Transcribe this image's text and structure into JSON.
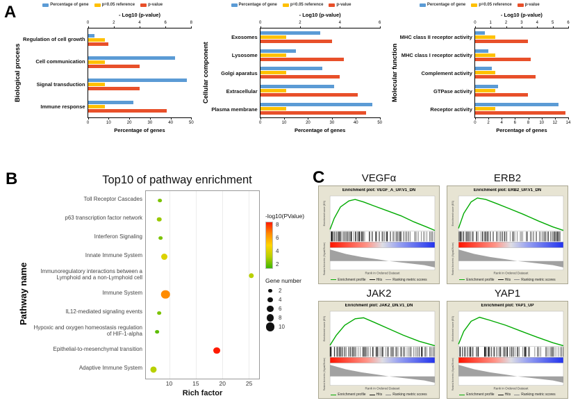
{
  "panel_labels": {
    "a": "A",
    "b": "B",
    "c": "C"
  },
  "go_labels": {
    "legend": [
      "Percentage of gene",
      "p=0.05 reference",
      "p-value"
    ],
    "colors": {
      "percent": "#5b9bd5",
      "reference": "#ffc000",
      "pvalue": "#e8502a"
    }
  },
  "gsea_labels": {
    "legend": [
      "Enrichment profile",
      "Hits",
      "Ranking metric scores"
    ],
    "legend_colors": [
      "#00aa00",
      "#111111",
      "#888888"
    ],
    "xlabel": "Rank in Ordered Dataset",
    "ylabel_es": "Enrichment score (ES)",
    "ylabel_metric": "Ranked list metric (Signal2Noise)"
  },
  "chart_data": [
    {
      "id": "go_bp",
      "type": "bar",
      "panel": "A",
      "group_label": "Biological process",
      "top_axis": {
        "label": "- Log10 (p-value)",
        "max": 8,
        "ticks": [
          0,
          2,
          4,
          6,
          8
        ]
      },
      "bottom_axis": {
        "label": "Percentage of genes",
        "max": 50,
        "ticks": [
          0,
          10,
          20,
          30,
          40,
          50
        ]
      },
      "categories": [
        "Regulation of cell growth",
        "Cell communication",
        "Signal transduction",
        "Immune response"
      ],
      "series": [
        {
          "name": "Percentage of gene",
          "axis": "bottom",
          "color": "#5b9bd5",
          "values": [
            3,
            42,
            48,
            22
          ]
        },
        {
          "name": "p=0.05 reference",
          "axis": "top",
          "color": "#ffc000",
          "values": [
            1.3,
            1.3,
            1.3,
            1.3
          ]
        },
        {
          "name": "p-value",
          "axis": "top",
          "color": "#e8502a",
          "values": [
            1.6,
            4.0,
            4.0,
            6.1
          ]
        }
      ]
    },
    {
      "id": "go_cc",
      "type": "bar",
      "panel": "A",
      "group_label": "Cellular component",
      "top_axis": {
        "label": "- Log10 (p-value)",
        "max": 6,
        "ticks": [
          0,
          2,
          4,
          6
        ]
      },
      "bottom_axis": {
        "label": "Percentage of genes",
        "max": 50,
        "ticks": [
          0,
          10,
          20,
          30,
          40,
          50
        ]
      },
      "categories": [
        "Exosomes",
        "Lysosome",
        "Golgi aparatus",
        "Extracellular",
        "Plasma membrane"
      ],
      "series": [
        {
          "name": "Percentage of gene",
          "axis": "bottom",
          "color": "#5b9bd5",
          "values": [
            25,
            15,
            26,
            31,
            47
          ]
        },
        {
          "name": "p=0.05 reference",
          "axis": "top",
          "color": "#ffc000",
          "values": [
            1.3,
            1.3,
            1.3,
            1.3,
            1.3
          ]
        },
        {
          "name": "p-value",
          "axis": "top",
          "color": "#e8502a",
          "values": [
            3.6,
            4.2,
            4.0,
            4.9,
            5.3
          ]
        }
      ]
    },
    {
      "id": "go_mf",
      "type": "bar",
      "panel": "A",
      "group_label": "Molecular function",
      "top_axis": {
        "label": "- Log10 (p-value)",
        "max": 6,
        "ticks": [
          0,
          1,
          2,
          3,
          4,
          5,
          6
        ]
      },
      "bottom_axis": {
        "label": "Percentage of genes",
        "max": 14,
        "ticks": [
          0,
          2,
          4,
          6,
          8,
          10,
          12,
          14
        ]
      },
      "categories": [
        "MHC class II receptor activity",
        "MHC class I receptor activity",
        "Complement activity",
        "GTPase activity",
        "Receptor activity"
      ],
      "series": [
        {
          "name": "Percentage of gene",
          "axis": "bottom",
          "color": "#5b9bd5",
          "values": [
            1.5,
            2,
            2.5,
            3.5,
            12.5
          ]
        },
        {
          "name": "p=0.05 reference",
          "axis": "top",
          "color": "#ffc000",
          "values": [
            1.3,
            1.3,
            1.3,
            1.3,
            1.3
          ]
        },
        {
          "name": "p-value",
          "axis": "top",
          "color": "#e8502a",
          "values": [
            3.4,
            3.6,
            3.9,
            3.4,
            5.8
          ]
        }
      ]
    },
    {
      "id": "pathway_bubble",
      "type": "scatter",
      "panel": "B",
      "title": "Top10 of pathway enrichment",
      "xlabel": "Rich factor",
      "ylabel": "Pathway name",
      "x_range": [
        5.5,
        27
      ],
      "x_ticks": [
        10,
        15,
        20,
        25
      ],
      "color_scale": {
        "title": "-log10(PValue)",
        "min": 2,
        "max": 8,
        "ticks": [
          8,
          6,
          4,
          2
        ]
      },
      "size_legend": {
        "title": "Gene number",
        "values": [
          2,
          4,
          6,
          8,
          10
        ]
      },
      "points": [
        {
          "pathway": "Toll Receptor Cascades",
          "rich_factor": 8.2,
          "log10_pvalue": 3.0,
          "gene_number": 2
        },
        {
          "pathway": "p63 transcription factor network",
          "rich_factor": 8.0,
          "log10_pvalue": 3.5,
          "gene_number": 3
        },
        {
          "pathway": "Interferon Signaling",
          "rich_factor": 8.3,
          "log10_pvalue": 3.0,
          "gene_number": 2
        },
        {
          "pathway": "Innate Immune System",
          "rich_factor": 9.0,
          "log10_pvalue": 4.5,
          "gene_number": 7
        },
        {
          "pathway": "Immunoregulatory interactions between a Lymphoid and a non-Lymphoid cell",
          "rich_factor": 25.5,
          "log10_pvalue": 4.0,
          "gene_number": 4
        },
        {
          "pathway": "Immune System",
          "rich_factor": 9.2,
          "log10_pvalue": 6.0,
          "gene_number": 10
        },
        {
          "pathway": "IL12-mediated signaling events",
          "rich_factor": 8.0,
          "log10_pvalue": 3.0,
          "gene_number": 2
        },
        {
          "pathway": "Hypoxic and oxygen homeostasis regulation of HIF-1-alpha",
          "rich_factor": 7.6,
          "log10_pvalue": 2.5,
          "gene_number": 2
        },
        {
          "pathway": "Epithelial-to-mesenchymal transition",
          "rich_factor": 19.0,
          "log10_pvalue": 8.0,
          "gene_number": 7
        },
        {
          "pathway": "Adaptive Immune System",
          "rich_factor": 7.0,
          "log10_pvalue": 4.0,
          "gene_number": 6
        }
      ]
    },
    {
      "id": "gsea_vegfa",
      "type": "line",
      "subtype": "gsea",
      "panel": "C",
      "seed": 11,
      "gene": "VEGFα",
      "title": "Enrichment plot: VEGF_A_UP.V1_DN",
      "es_range": [
        0,
        0.7
      ],
      "es_curve": [
        [
          0,
          0.03
        ],
        [
          0.04,
          0.25
        ],
        [
          0.1,
          0.48
        ],
        [
          0.18,
          0.6
        ],
        [
          0.24,
          0.63
        ],
        [
          0.32,
          0.58
        ],
        [
          0.42,
          0.5
        ],
        [
          0.55,
          0.4
        ],
        [
          0.68,
          0.3
        ],
        [
          0.8,
          0.18
        ],
        [
          0.92,
          0.08
        ],
        [
          1,
          0.01
        ]
      ],
      "metric_range": [
        3,
        -2
      ],
      "metric_curve": [
        [
          0,
          2.6
        ],
        [
          0.15,
          1.6
        ],
        [
          0.3,
          0.9
        ],
        [
          0.45,
          0.4
        ],
        [
          0.55,
          0.05
        ],
        [
          0.6,
          -0.1
        ],
        [
          0.75,
          -0.5
        ],
        [
          0.9,
          -0.9
        ],
        [
          1,
          -1.4
        ]
      ]
    },
    {
      "id": "gsea_erb2",
      "type": "line",
      "subtype": "gsea",
      "panel": "C",
      "seed": 29,
      "gene": "ERB2",
      "title": "Enrichment plot: ERB2_UP.V1_DN",
      "es_range": [
        0,
        0.7
      ],
      "es_curve": [
        [
          0,
          0.05
        ],
        [
          0.05,
          0.35
        ],
        [
          0.12,
          0.58
        ],
        [
          0.18,
          0.66
        ],
        [
          0.26,
          0.63
        ],
        [
          0.36,
          0.55
        ],
        [
          0.48,
          0.45
        ],
        [
          0.62,
          0.33
        ],
        [
          0.76,
          0.2
        ],
        [
          0.9,
          0.08
        ],
        [
          1,
          0.01
        ]
      ],
      "metric_range": [
        3,
        -2
      ],
      "metric_curve": [
        [
          0,
          2.6
        ],
        [
          0.15,
          1.6
        ],
        [
          0.3,
          0.9
        ],
        [
          0.45,
          0.4
        ],
        [
          0.55,
          0.05
        ],
        [
          0.6,
          -0.1
        ],
        [
          0.75,
          -0.5
        ],
        [
          0.9,
          -0.9
        ],
        [
          1,
          -1.4
        ]
      ]
    },
    {
      "id": "gsea_jak2",
      "type": "line",
      "subtype": "gsea",
      "panel": "C",
      "seed": 47,
      "gene": "JAK2",
      "title": "Enrichment plot: JAK2_DN.V1_DN",
      "es_range": [
        0,
        0.7
      ],
      "es_curve": [
        [
          0,
          0.02
        ],
        [
          0.06,
          0.22
        ],
        [
          0.14,
          0.42
        ],
        [
          0.24,
          0.55
        ],
        [
          0.32,
          0.57
        ],
        [
          0.42,
          0.48
        ],
        [
          0.55,
          0.36
        ],
        [
          0.7,
          0.22
        ],
        [
          0.85,
          0.1
        ],
        [
          1,
          0.01
        ]
      ],
      "metric_range": [
        3,
        -2
      ],
      "metric_curve": [
        [
          0,
          2.6
        ],
        [
          0.15,
          1.6
        ],
        [
          0.3,
          0.9
        ],
        [
          0.45,
          0.4
        ],
        [
          0.55,
          0.05
        ],
        [
          0.6,
          -0.1
        ],
        [
          0.75,
          -0.5
        ],
        [
          0.9,
          -0.9
        ],
        [
          1,
          -1.4
        ]
      ]
    },
    {
      "id": "gsea_yap1",
      "type": "line",
      "subtype": "gsea",
      "panel": "C",
      "seed": 73,
      "gene": "YAP1",
      "title": "Enrichment plot: YAP1_UP",
      "es_range": [
        0,
        0.7
      ],
      "es_curve": [
        [
          0,
          0.04
        ],
        [
          0.05,
          0.3
        ],
        [
          0.12,
          0.5
        ],
        [
          0.2,
          0.58
        ],
        [
          0.3,
          0.52
        ],
        [
          0.45,
          0.42
        ],
        [
          0.6,
          0.3
        ],
        [
          0.75,
          0.18
        ],
        [
          0.9,
          0.07
        ],
        [
          1,
          0.01
        ]
      ],
      "metric_range": [
        3,
        -2
      ],
      "metric_curve": [
        [
          0,
          2.6
        ],
        [
          0.15,
          1.6
        ],
        [
          0.3,
          0.9
        ],
        [
          0.45,
          0.4
        ],
        [
          0.55,
          0.05
        ],
        [
          0.6,
          -0.1
        ],
        [
          0.75,
          -0.5
        ],
        [
          0.9,
          -0.9
        ],
        [
          1,
          -1.4
        ]
      ]
    }
  ]
}
